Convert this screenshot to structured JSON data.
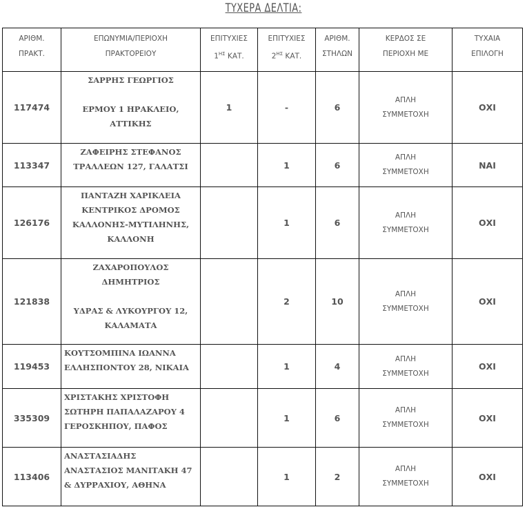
{
  "title": "ΤΥΧΕΡΑ ΔΕΛΤΙΑ:",
  "headers": [
    {
      "line1": "ΑΡΙΘΜ.",
      "line2": "ΠΡΑΚΤ.",
      "sup": ""
    },
    {
      "line1": "ΕΠΩΝΥΜΙΑ/ΠΕΡΙΟΧΗ",
      "line2": "ΠΡΑΚΤΟΡΕΙΟΥ",
      "sup": ""
    },
    {
      "line1": "ΕΠΙΤΥΧΙΕΣ",
      "line2pre": "1",
      "sup": "ΗΣ",
      "line2": " ΚΑΤ."
    },
    {
      "line1": "ΕΠΙΤΥΧΙΕΣ",
      "line2pre": "2",
      "sup": "ΗΣ",
      "line2": " ΚΑΤ."
    },
    {
      "line1": "ΑΡΙΘΜ.",
      "line2": "ΣΤΗΛΩΝ",
      "sup": ""
    },
    {
      "line1": "ΚΕΡΔΟΣ ΣΕ",
      "line2": "ΠΕΡΙΟΧΗ ΜΕ",
      "sup": ""
    },
    {
      "line1": "ΤΥΧΑΙΑ",
      "line2": "ΕΠΙΛΟΓΗ",
      "sup": ""
    }
  ],
  "rows": [
    {
      "code": "117474",
      "name": "ΣΑΡΡΗΣ ΓΕΩΡΓΙΟΣ\n\nΕΡΜΟΥ 1 ΗΡΑΚΛΕΙΟ,\nΑΤΤΙΚΗΣ",
      "first": "1",
      "second": "-",
      "columns": "6",
      "win": "ΑΠΛΗ\nΣΥΜΜΕΤΟΧΗ",
      "random": "ΟΧΙ"
    },
    {
      "code": "113347",
      "name": "ΖΑΦΕΙΡΗΣ ΣΤΕΦΑΝΟΣ\nΤΡΑΛΛΕΩΝ 127, ΓΑΛΑΤΣΙ",
      "first": "",
      "second": "1",
      "columns": "6",
      "win": "ΑΠΛΗ\nΣΥΜΜΕΤΟΧΗ",
      "random": "ΝΑΙ"
    },
    {
      "code": "126176",
      "name": "ΠΑΝΤΑΖΗ ΧΑΡΙΚΛΕΙΑ\nΚΕΝΤΡΙΚΟΣ ΔΡΟΜΟΣ\nΚΑΛΛΟΝΗΣ-ΜΥΤΙΛΗΝΗΣ,\nΚΑΛΛΟΝΗ",
      "first": "",
      "second": "1",
      "columns": "6",
      "win": "ΑΠΛΗ\nΣΥΜΜΕΤΟΧΗ",
      "random": "ΟΧΙ"
    },
    {
      "code": "121838",
      "name": "ΖΑΧΑΡΟΠΟΥΛΟΣ\nΔΗΜΗΤΡΙΟΣ\n\nΥΔΡΑΣ & ΛΥΚΟΥΡΓΟΥ 12,\nΚΑΛΑΜΑΤΑ",
      "first": "",
      "second": "2",
      "columns": "10",
      "win": "ΑΠΛΗ\nΣΥΜΜΕΤΟΧΗ",
      "random": "ΟΧΙ"
    },
    {
      "code": "119453",
      "name": "ΚΟΥΤΣΟΜΠΙΝΑ ΙΩΑΝΝΑ\nΕΛΛΗΣΠΟΝΤΟΥ 28, ΝΙΚΑΙΑ",
      "first": "",
      "second": "1",
      "columns": "4",
      "win": "ΑΠΛΗ\nΣΥΜΜΕΤΟΧΗ",
      "random": "ΟΧΙ"
    },
    {
      "code": "335309",
      "name": "ΧΡΙΣΤΑΚΗΣ ΧΡΙΣΤΟΦΗ\nΣΩΤΗΡΗ ΠΑΠΑΛΑΖΑΡΟΥ 4\nΓΕΡΟΣΚΗΠΟΥ, ΠΑΦΟΣ",
      "first": "",
      "second": "1",
      "columns": "6",
      "win": "ΑΠΛΗ\nΣΥΜΜΕΤΟΧΗ",
      "random": "ΟΧΙ"
    },
    {
      "code": "113406",
      "name": "ΑΝΑΣΤΑΣΙΑΔΗΣ\nΑΝΑΣΤΑΣΙΟΣ ΜΑΝΙΤΑΚΗ  47\n& ΔΥΡΡΑΧΙΟΥ, ΑΘΗΝΑ",
      "first": "",
      "second": "1",
      "columns": "2",
      "win": "ΑΠΛΗ\nΣΥΜΜΕΤΟΧΗ",
      "random": "ΟΧΙ"
    }
  ]
}
